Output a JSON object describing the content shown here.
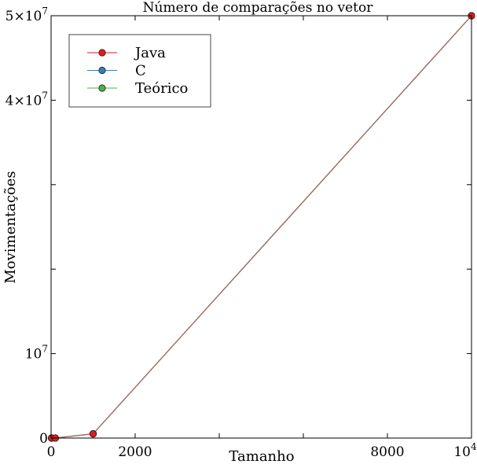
{
  "chart_data": {
    "type": "line",
    "title": "Número de comparações no vetor",
    "xlabel": "Tamanho",
    "ylabel": "Movimentações",
    "xlim": [
      0,
      10000
    ],
    "ylim": [
      0,
      50000000
    ],
    "x_ticks": [
      {
        "value": 0,
        "label": "0"
      },
      {
        "value": 2000,
        "label": "2000"
      },
      {
        "value": 8000,
        "label": "8000"
      },
      {
        "value": 10000,
        "label": "10",
        "sup": "4"
      }
    ],
    "y_ticks": [
      {
        "value": 0,
        "label": "0",
        "sup": ""
      },
      {
        "value": 10000000,
        "label": "10",
        "sup": "7"
      },
      {
        "value": 40000000,
        "label": "4×10",
        "sup": "7"
      },
      {
        "value": 50000000,
        "label": "5×10",
        "sup": "7"
      }
    ],
    "x_minor_ticks": [
      2000,
      4000,
      6000,
      8000
    ],
    "y_minor_ticks": [
      10000000,
      20000000,
      30000000,
      40000000
    ],
    "legend_position": "top-left",
    "grid": false,
    "series": [
      {
        "name": "Java",
        "color": "#e41a1c",
        "line_color": "#a86a5a",
        "x": [
          10,
          100,
          1000,
          10000
        ],
        "y": [
          50,
          5000,
          500000,
          50000000
        ]
      },
      {
        "name": "C",
        "color": "#377eb8",
        "line_color": "#377eb8",
        "x": [
          10,
          100,
          1000,
          10000
        ],
        "y": [
          50,
          5000,
          500000,
          50000000
        ]
      },
      {
        "name": "Teórico",
        "color": "#4daf4a",
        "line_color": "#4daf4a",
        "x": [
          10,
          100,
          1000,
          10000
        ],
        "y": [
          50,
          5000,
          500000,
          50000000
        ]
      }
    ]
  }
}
